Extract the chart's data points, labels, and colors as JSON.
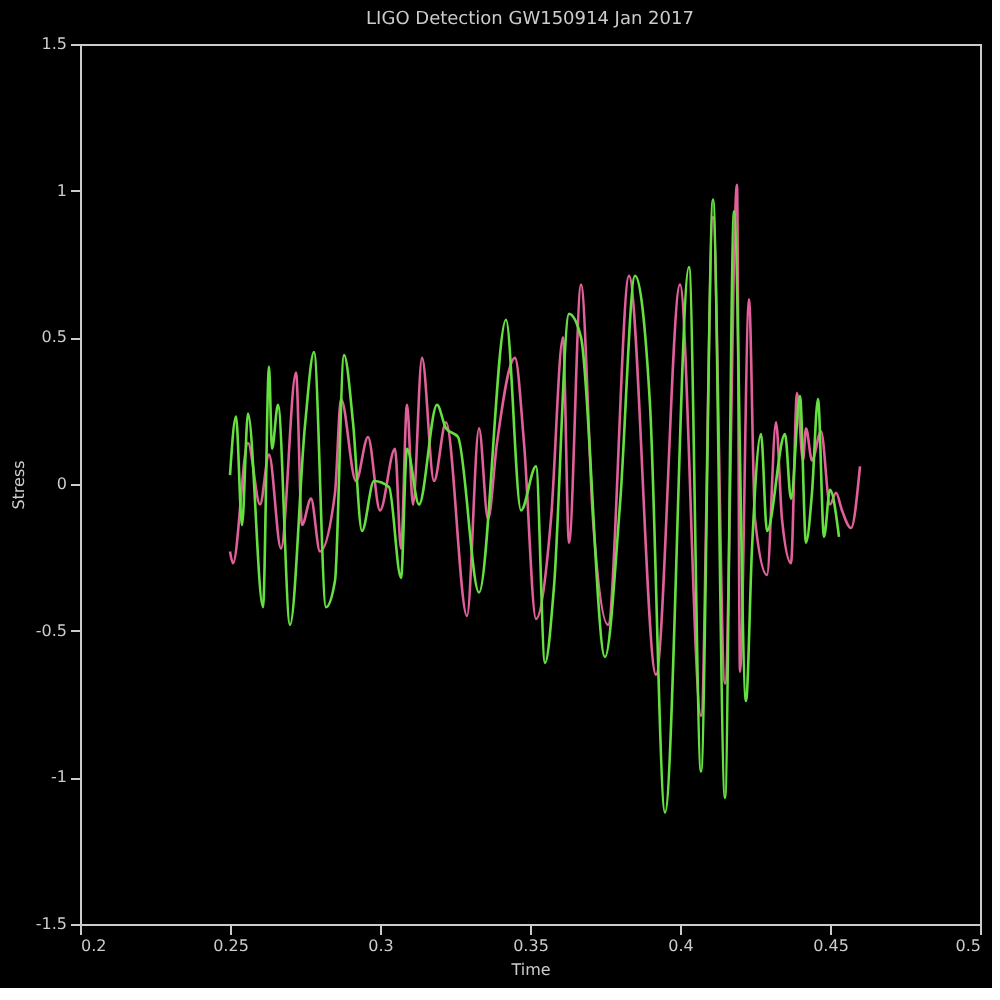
{
  "chart_data": {
    "type": "line",
    "title": "LIGO Detection GW150914 Jan 2017",
    "xlabel": "Time",
    "ylabel": "Stress",
    "xlim": [
      0.2,
      0.5
    ],
    "xticks": [
      0.2,
      0.25,
      0.3,
      0.35,
      0.4,
      0.45,
      0.5
    ],
    "ylim": [
      -1.5,
      1.5
    ],
    "yticks": [
      -1.5,
      -1,
      -0.5,
      0,
      0.5,
      1,
      1.5
    ],
    "grid": false,
    "marker": "none",
    "line_style": "solid",
    "series": [
      {
        "color": "#e0609a",
        "x": [
          0.25,
          0.251,
          0.256,
          0.26,
          0.263,
          0.267,
          0.272,
          0.274,
          0.277,
          0.28,
          0.285,
          0.287,
          0.292,
          0.296,
          0.3,
          0.305,
          0.307,
          0.309,
          0.311,
          0.314,
          0.318,
          0.322,
          0.329,
          0.333,
          0.336,
          0.339,
          0.345,
          0.348,
          0.352,
          0.357,
          0.361,
          0.363,
          0.367,
          0.371,
          0.376,
          0.383,
          0.392,
          0.4,
          0.407,
          0.411,
          0.415,
          0.419,
          0.42,
          0.423,
          0.425,
          0.429,
          0.432,
          0.434,
          0.437,
          0.439,
          0.441,
          0.442,
          0.444,
          0.447,
          0.45,
          0.452,
          0.454,
          0.457,
          0.46
        ],
        "values": [
          -0.23,
          -0.27,
          0.14,
          -0.07,
          0.1,
          -0.22,
          0.38,
          -0.14,
          -0.05,
          -0.23,
          -0.03,
          0.29,
          0.01,
          0.16,
          -0.09,
          0.12,
          -0.22,
          0.27,
          -0.07,
          0.43,
          0.01,
          0.21,
          -0.45,
          0.19,
          -0.12,
          0.14,
          0.43,
          0.14,
          -0.46,
          -0.12,
          0.5,
          -0.2,
          0.68,
          -0.12,
          -0.48,
          0.71,
          -0.65,
          0.68,
          -0.79,
          0.91,
          -0.68,
          1.02,
          -0.64,
          0.63,
          -0.12,
          -0.31,
          0.21,
          -0.12,
          -0.27,
          0.31,
          0.08,
          0.19,
          0.08,
          0.18,
          -0.07,
          -0.03,
          -0.09,
          -0.15,
          0.06
        ]
      },
      {
        "color": "#66e040",
        "x": [
          0.25,
          0.252,
          0.254,
          0.256,
          0.261,
          0.263,
          0.264,
          0.266,
          0.27,
          0.275,
          0.278,
          0.282,
          0.285,
          0.288,
          0.291,
          0.294,
          0.298,
          0.303,
          0.307,
          0.309,
          0.313,
          0.319,
          0.322,
          0.326,
          0.333,
          0.342,
          0.347,
          0.352,
          0.355,
          0.358,
          0.363,
          0.367,
          0.375,
          0.38,
          0.385,
          0.39,
          0.395,
          0.403,
          0.407,
          0.411,
          0.415,
          0.418,
          0.422,
          0.424,
          0.427,
          0.429,
          0.435,
          0.437,
          0.44,
          0.442,
          0.444,
          0.446,
          0.448,
          0.45,
          0.453
        ],
        "values": [
          0.03,
          0.23,
          -0.14,
          0.24,
          -0.42,
          0.4,
          0.12,
          0.27,
          -0.48,
          0.2,
          0.45,
          -0.42,
          -0.33,
          0.44,
          0.21,
          -0.16,
          0.01,
          -0.01,
          -0.32,
          0.12,
          -0.07,
          0.27,
          0.19,
          0.16,
          -0.37,
          0.56,
          -0.09,
          0.06,
          -0.61,
          -0.35,
          0.58,
          0.5,
          -0.59,
          -0.07,
          0.71,
          0.27,
          -1.12,
          0.74,
          -0.98,
          0.97,
          -1.07,
          0.93,
          -0.74,
          -0.22,
          0.17,
          -0.16,
          0.17,
          -0.05,
          0.3,
          -0.2,
          -0.03,
          0.29,
          -0.18,
          -0.02,
          -0.18
        ]
      }
    ]
  }
}
